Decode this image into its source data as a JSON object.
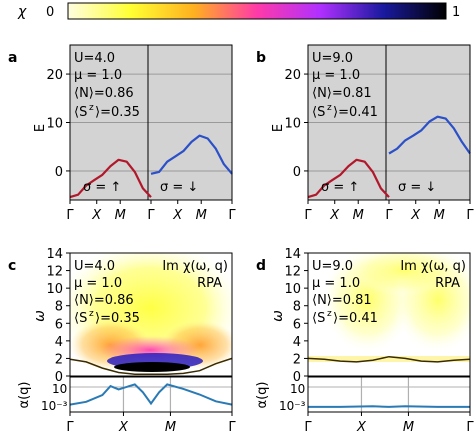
{
  "colorbar": {
    "symbol": "χ",
    "min_label": "0",
    "max_label": "1",
    "stops": [
      "#fffde0",
      "#ffff33",
      "#ffb020",
      "#ff3aa8",
      "#b030ff",
      "#1a1aa0",
      "#000000"
    ]
  },
  "panels": {
    "a": {
      "letter": "a",
      "U": "U=4.0",
      "mu": "μ = 1.0",
      "N": "⟨N⟩=0.86",
      "Sz": "⟨S",
      "Sz_val": "⟩=0.35"
    },
    "b": {
      "letter": "b",
      "U": "U=9.0",
      "mu": "μ = 1.0",
      "N": "⟨N⟩=0.81",
      "Sz": "⟨S",
      "Sz_val": "⟩=0.41"
    },
    "c": {
      "letter": "c",
      "U": "U=4.0",
      "mu": "μ = 1.0",
      "N": "⟨N⟩=0.86",
      "Sz": "⟨S",
      "Sz_val": "⟩=0.35",
      "im_label": "Im χ(ω, q)",
      "method": "RPA"
    },
    "d": {
      "letter": "d",
      "U": "U=9.0",
      "mu": "μ = 1.0",
      "N": "⟨N⟩=0.81",
      "Sz": "⟨S",
      "Sz_val": "⟩=0.41",
      "im_label": "Im χ(ω, q)",
      "method": "RPA"
    }
  },
  "spin_labels": {
    "up": "σ = ↑",
    "down": "σ = ↓"
  },
  "kpath": [
    "Γ",
    "X",
    "M",
    "Γ"
  ],
  "axis_labels": {
    "E": "E",
    "omega": "ω",
    "alpha": "α(q)"
  },
  "chart_data": [
    {
      "type": "line",
      "panel": "a",
      "ylabel": "E",
      "ylim": [
        -6,
        26
      ],
      "yticks": [
        0,
        10,
        20
      ],
      "grid": true,
      "x_ticks": [
        "Γ",
        "X",
        "M",
        "Γ"
      ],
      "series": [
        {
          "name": "σ = ↑",
          "color": "#b2182b",
          "x": [
            0,
            0.1,
            0.2,
            0.3,
            0.4,
            0.5,
            0.6,
            0.7,
            0.8,
            0.9,
            1.0
          ],
          "y": [
            -5.4,
            -4.9,
            -3.0,
            -1.9,
            -0.8,
            1.0,
            2.3,
            1.9,
            -0.2,
            -3.6,
            -5.4
          ]
        },
        {
          "name": "σ = ↓",
          "color": "#2b50c8",
          "x": [
            1.0,
            1.1,
            1.2,
            1.3,
            1.4,
            1.5,
            1.6,
            1.7,
            1.8,
            1.9,
            2.0
          ],
          "y": [
            -0.6,
            -0.2,
            1.9,
            3.0,
            4.1,
            6.0,
            7.3,
            6.7,
            4.6,
            1.4,
            -0.6
          ]
        }
      ]
    },
    {
      "type": "line",
      "panel": "b",
      "ylabel": "E",
      "ylim": [
        -6,
        26
      ],
      "yticks": [
        0,
        10,
        20
      ],
      "grid": true,
      "x_ticks": [
        "Γ",
        "X",
        "M",
        "Γ"
      ],
      "series": [
        {
          "name": "σ = ↑",
          "color": "#b2182b",
          "x": [
            0,
            0.1,
            0.2,
            0.3,
            0.4,
            0.5,
            0.6,
            0.7,
            0.8,
            0.9,
            1.0
          ],
          "y": [
            -5.4,
            -4.9,
            -3.0,
            -1.9,
            -0.8,
            1.0,
            2.3,
            1.9,
            -0.2,
            -3.6,
            -5.4
          ]
        },
        {
          "name": "σ = ↓",
          "color": "#2b50c8",
          "x": [
            1.0,
            1.1,
            1.2,
            1.3,
            1.4,
            1.5,
            1.6,
            1.7,
            1.8,
            1.9,
            2.0
          ],
          "y": [
            3.6,
            4.6,
            6.3,
            7.3,
            8.4,
            10.2,
            11.2,
            10.8,
            8.8,
            6.0,
            3.6
          ]
        }
      ]
    },
    {
      "type": "heatmap",
      "panel": "c",
      "ylabel": "ω",
      "ylim": [
        0,
        14
      ],
      "yticks": [
        0,
        2,
        4,
        6,
        8,
        10,
        12,
        14
      ],
      "x_ticks": [
        "Γ",
        "X",
        "M",
        "Γ"
      ],
      "gap_line": {
        "color": "#3a2a00",
        "x": [
          0,
          0.1,
          0.2,
          0.3,
          0.4,
          0.5,
          0.6,
          0.7,
          0.8,
          0.9,
          1.0
        ],
        "y": [
          1.9,
          1.6,
          0.9,
          0.4,
          0.2,
          0.2,
          0.2,
          0.3,
          0.6,
          1.4,
          2.0
        ]
      },
      "alpha": {
        "ylabel": "α(q)",
        "yticks": [
          "10",
          "10⁻³"
        ],
        "color": "#2a7ab5",
        "x": [
          0,
          0.1,
          0.2,
          0.25,
          0.3,
          0.4,
          0.45,
          0.5,
          0.55,
          0.6,
          0.7,
          0.8,
          0.9,
          1.0
        ],
        "y": [
          -3,
          -2.5,
          -1.3,
          0.3,
          -0.3,
          0.6,
          -0.8,
          -2.8,
          -0.8,
          0.6,
          -0.2,
          -1.2,
          -2.4,
          -3
        ]
      }
    },
    {
      "type": "heatmap",
      "panel": "d",
      "ylabel": "ω",
      "ylim": [
        0,
        14
      ],
      "yticks": [
        0,
        2,
        4,
        6,
        8,
        10,
        12,
        14
      ],
      "x_ticks": [
        "Γ",
        "X",
        "M",
        "Γ"
      ],
      "gap_line": {
        "color": "#3a2a00",
        "x": [
          0,
          0.1,
          0.2,
          0.3,
          0.4,
          0.5,
          0.6,
          0.7,
          0.8,
          0.9,
          1.0
        ],
        "y": [
          2.0,
          1.9,
          1.7,
          1.6,
          1.8,
          2.2,
          2.0,
          1.7,
          1.6,
          1.8,
          1.9
        ]
      },
      "alpha": {
        "ylabel": "α(q)",
        "yticks": [
          "10",
          "10⁻³"
        ],
        "color": "#2a7ab5",
        "x": [
          0,
          0.2,
          0.4,
          0.5,
          0.6,
          0.8,
          1.0
        ],
        "y": [
          -3.4,
          -3.4,
          -3.3,
          -3.4,
          -3.3,
          -3.4,
          -3.4
        ]
      }
    }
  ]
}
